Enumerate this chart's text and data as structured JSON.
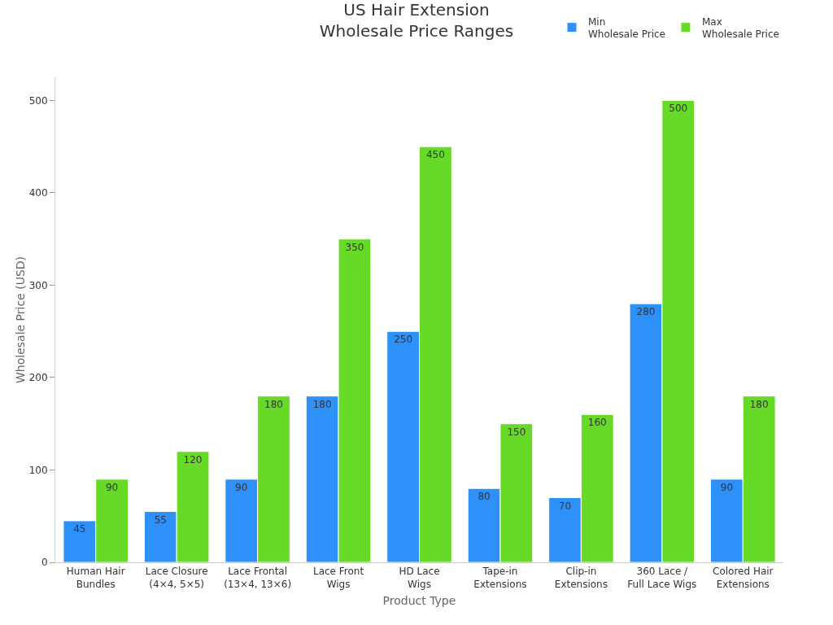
{
  "chart_data": {
    "type": "bar",
    "title": "US Hair Extension\nWholesale Price Ranges",
    "xlabel": "Product Type",
    "ylabel": "Wholesale Price (USD)",
    "categories": [
      "Human Hair\nBundles",
      "Lace Closure\n(4×4, 5×5)",
      "Lace Frontal\n(13×4, 13×6)",
      "Lace Front\nWigs",
      "HD Lace\nWigs",
      "Tape-in\nExtensions",
      "Clip-in\nExtensions",
      "360 Lace /\nFull Lace Wigs",
      "Colored Hair\nExtensions"
    ],
    "series": [
      {
        "name": "Min\nWholesale Price",
        "color": "#2e90f9",
        "values": [
          45,
          55,
          90,
          180,
          250,
          80,
          70,
          280,
          90
        ]
      },
      {
        "name": "Max\nWholesale Price",
        "color": "#66da26",
        "values": [
          90,
          120,
          180,
          350,
          450,
          150,
          160,
          500,
          180
        ]
      }
    ],
    "ylim": [
      0,
      525
    ],
    "yticks": [
      0,
      100,
      200,
      300,
      400,
      500
    ],
    "grid": false,
    "legend": "top right",
    "data_labels": true
  }
}
